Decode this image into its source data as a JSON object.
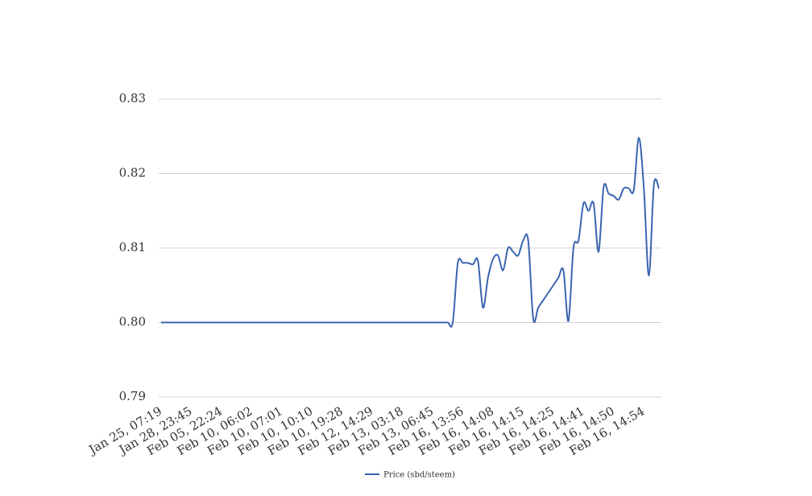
{
  "chart_data": {
    "type": "line",
    "categories": [
      "Jan 25, 07:19",
      null,
      null,
      null,
      null,
      null,
      "Jan 28, 23:45",
      null,
      null,
      null,
      null,
      null,
      "Feb 05, 22:24",
      null,
      null,
      null,
      null,
      null,
      "Feb 10, 06:02",
      null,
      null,
      null,
      null,
      null,
      "Feb 10, 07:01",
      null,
      null,
      null,
      null,
      null,
      "Feb 10, 10:10",
      null,
      null,
      null,
      null,
      null,
      "Feb 10, 19:28",
      null,
      null,
      null,
      null,
      null,
      "Feb 12, 14:29",
      null,
      null,
      null,
      null,
      null,
      "Feb 13, 03:18",
      null,
      null,
      null,
      null,
      null,
      "Feb 13, 06:45",
      null,
      null,
      null,
      null,
      null,
      "Feb 16, 13:56",
      null,
      null,
      null,
      null,
      null,
      "Feb 16, 14:08",
      null,
      null,
      null,
      null,
      null,
      "Feb 16, 14:15",
      null,
      null,
      null,
      null,
      null,
      "Feb 16, 14:25",
      null,
      null,
      null,
      null,
      null,
      "Feb 16, 14:41",
      null,
      null,
      null,
      null,
      null,
      "Feb 16, 14:50",
      null,
      null,
      null,
      null,
      null,
      "Feb 16, 14:54",
      null,
      null,
      null
    ],
    "series": [
      {
        "name": "Price (sbd/steem)",
        "color": "#3a64b0",
        "values": [
          0.8,
          0.8,
          0.8,
          0.8,
          0.8,
          0.8,
          0.8,
          0.8,
          0.8,
          0.8,
          0.8,
          0.8,
          0.8,
          0.8,
          0.8,
          0.8,
          0.8,
          0.8,
          0.8,
          0.8,
          0.8,
          0.8,
          0.8,
          0.8,
          0.8,
          0.8,
          0.8,
          0.8,
          0.8,
          0.8,
          0.8,
          0.8,
          0.8,
          0.8,
          0.8,
          0.8,
          0.8,
          0.8,
          0.8,
          0.8,
          0.8,
          0.8,
          0.8,
          0.8,
          0.8,
          0.8,
          0.8,
          0.8,
          0.8,
          0.8,
          0.8,
          0.8,
          0.8,
          0.8,
          0.8,
          0.8,
          0.8,
          0.8,
          0.8,
          0.808,
          0.808,
          0.808,
          0.8078,
          0.8083,
          0.802,
          0.806,
          0.8085,
          0.809,
          0.807,
          0.81,
          0.8095,
          0.809,
          0.811,
          0.811,
          0.8005,
          0.802,
          0.803,
          0.804,
          0.805,
          0.806,
          0.807,
          0.8002,
          0.81,
          0.811,
          0.816,
          0.815,
          0.816,
          0.8095,
          0.8182,
          0.8173,
          0.817,
          0.8165,
          0.818,
          0.818,
          0.8178,
          0.8248,
          0.818,
          0.8063,
          0.8185,
          0.818
        ]
      }
    ],
    "ylim": [
      0.79,
      0.83
    ],
    "yticks": [
      0.79,
      {
        "value": 0.8,
        "label": "0.80"
      },
      0.81,
      0.82,
      0.83
    ],
    "grid": true,
    "smooth": true,
    "legend": "bottom"
  }
}
